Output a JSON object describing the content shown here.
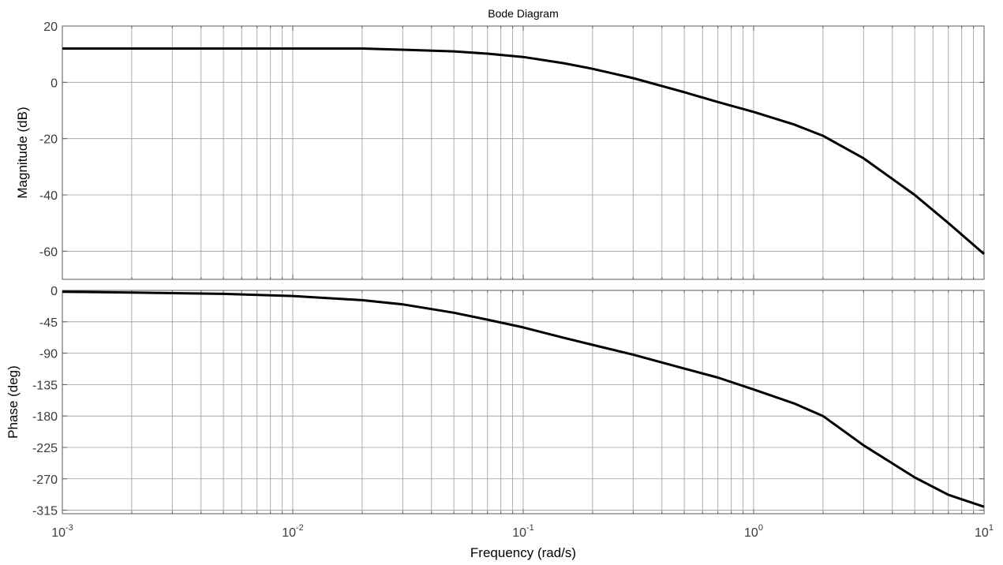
{
  "chart_data": [
    {
      "type": "line",
      "title": "Bode Diagram",
      "ylabel": "Magnitude (dB)",
      "xlabel": "",
      "xscale": "log",
      "xlim": [
        0.001,
        10
      ],
      "ylim": [
        -70,
        20
      ],
      "grid": true,
      "x_ticks": [
        "10^-3",
        "10^-2",
        "10^-1",
        "10^0",
        "10^1"
      ],
      "y_ticks": [
        "20",
        "0",
        "-20",
        "-40",
        "-60"
      ],
      "series": [
        {
          "x": [
            0.001,
            0.002,
            0.005,
            0.01,
            0.02,
            0.03,
            0.05,
            0.07,
            0.1,
            0.15,
            0.2,
            0.3,
            0.5,
            0.7,
            1,
            1.5,
            2,
            3,
            5,
            7,
            10
          ],
          "values": [
            12,
            12,
            12,
            12,
            12,
            11.6,
            11,
            10.2,
            9,
            6.8,
            4.8,
            1.5,
            -3.5,
            -7,
            -10.5,
            -15,
            -19,
            -27,
            -40,
            -50,
            -61
          ]
        }
      ]
    },
    {
      "type": "line",
      "title": "",
      "ylabel": "Phase (deg)",
      "xlabel": "Frequency  (rad/s)",
      "xscale": "log",
      "xlim": [
        0.001,
        10
      ],
      "ylim": [
        -320,
        0
      ],
      "grid": true,
      "x_ticks": [
        "10^-3",
        "10^-2",
        "10^-1",
        "10^0",
        "10^1"
      ],
      "y_ticks": [
        "0",
        "-45",
        "-90",
        "-135",
        "-180",
        "-225",
        "-270",
        "-315"
      ],
      "series": [
        {
          "x": [
            0.001,
            0.002,
            0.005,
            0.01,
            0.02,
            0.03,
            0.05,
            0.07,
            0.1,
            0.15,
            0.2,
            0.3,
            0.5,
            0.7,
            1,
            1.5,
            2,
            3,
            5,
            7,
            10
          ],
          "values": [
            -2,
            -3,
            -5,
            -8,
            -14,
            -20,
            -32,
            -42,
            -53,
            -68,
            -78,
            -92,
            -112,
            -125,
            -142,
            -162,
            -180,
            -222,
            -268,
            -293,
            -310
          ]
        }
      ]
    }
  ]
}
